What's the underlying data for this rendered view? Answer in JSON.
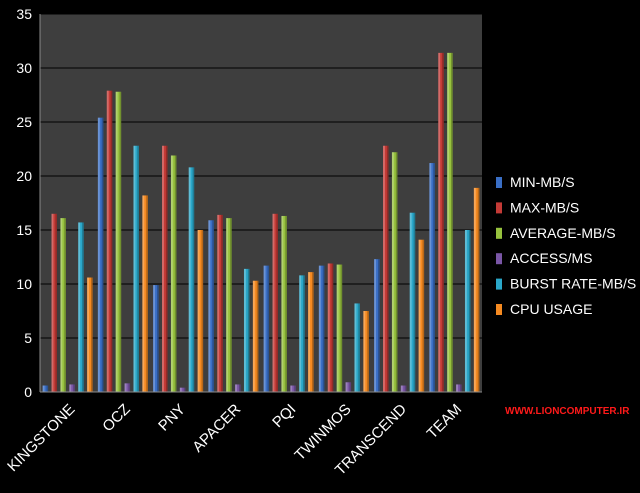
{
  "colors": {
    "background": "#000000",
    "plot_area": "#3e3e3e",
    "grid": "#000000",
    "text": "#ffffff",
    "watermark": "#ff1a1a"
  },
  "watermark": "WWW.LIONCOMPUTER.IR",
  "chart_data": {
    "type": "bar",
    "title": "",
    "xlabel": "",
    "ylabel": "",
    "ylim": [
      0,
      35
    ],
    "yticks": [
      0,
      5,
      10,
      15,
      20,
      25,
      30,
      35
    ],
    "grid": true,
    "legend_position": "right",
    "categories": [
      "KINGSTONE",
      "OCZ",
      "PNY",
      "APACER",
      "PQI",
      "TWINMOS",
      "TRANSCEND",
      "TEAM"
    ],
    "series": [
      {
        "name": "MIN-MB/S",
        "color": "#3a6fc6",
        "values": [
          0.6,
          25.4,
          9.9,
          15.9,
          11.7,
          11.7,
          12.3,
          21.2
        ]
      },
      {
        "name": "MAX-MB/S",
        "color": "#c43a36",
        "values": [
          16.5,
          27.9,
          22.8,
          16.4,
          16.5,
          11.9,
          22.8,
          31.4
        ]
      },
      {
        "name": "AVERAGE-MB/S",
        "color": "#97c23e",
        "values": [
          16.1,
          27.8,
          21.9,
          16.1,
          16.3,
          11.8,
          22.2,
          31.4
        ]
      },
      {
        "name": "ACCESS/MS",
        "color": "#7a56a6",
        "values": [
          0.7,
          0.8,
          0.4,
          0.7,
          0.6,
          0.9,
          0.6,
          0.7
        ]
      },
      {
        "name": "BURST RATE-MB/S",
        "color": "#2aa7c9",
        "values": [
          15.7,
          22.8,
          20.8,
          11.4,
          10.8,
          8.2,
          16.6,
          15.0
        ]
      },
      {
        "name": "CPU USAGE",
        "color": "#f58a21",
        "values": [
          10.6,
          18.2,
          15.0,
          10.3,
          11.1,
          7.5,
          14.1,
          18.9
        ]
      }
    ]
  }
}
